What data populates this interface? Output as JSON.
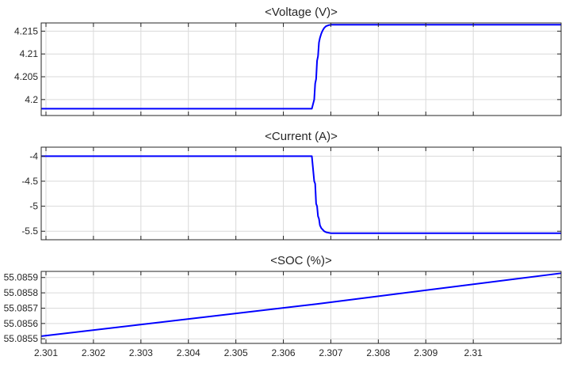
{
  "chart_data": [
    {
      "type": "line",
      "title": "<Voltage (V)>",
      "xlim": [
        2.3009,
        2.31185
      ],
      "ylim": [
        4.1965,
        4.2168
      ],
      "yticks": [
        4.2,
        4.205,
        4.21,
        4.215
      ],
      "ytick_labels": [
        "4.2",
        "4.205",
        "4.21",
        "4.215"
      ],
      "grid": true,
      "series": [
        {
          "color": "#0000ff",
          "x": [
            2.3009,
            2.3066,
            2.30665,
            2.30667,
            2.30669,
            2.30671,
            2.30673,
            2.30675,
            2.30677,
            2.3068,
            2.30683,
            2.30686,
            2.3069,
            2.30695,
            2.307,
            2.31185
          ],
          "y": [
            4.198,
            4.198,
            4.2,
            4.2035,
            4.2045,
            4.2085,
            4.2095,
            4.2125,
            4.2135,
            4.2145,
            4.2152,
            4.2157,
            4.2161,
            4.2163,
            4.2164,
            4.2164
          ]
        }
      ]
    },
    {
      "type": "line",
      "title": "<Current (A)>",
      "xlim": [
        2.3009,
        2.31185
      ],
      "ylim": [
        -5.67,
        -3.82
      ],
      "yticks": [
        -5.5,
        -5,
        -4.5,
        -4
      ],
      "ytick_labels": [
        "-5.5",
        "-5",
        "-4.5",
        "-4"
      ],
      "grid": true,
      "series": [
        {
          "color": "#0000ff",
          "x": [
            2.3009,
            2.3066,
            2.30665,
            2.30667,
            2.30669,
            2.30671,
            2.30673,
            2.30675,
            2.30677,
            2.3068,
            2.30683,
            2.30686,
            2.3069,
            2.30695,
            2.307,
            2.31185
          ],
          "y": [
            -4.0,
            -4.0,
            -4.5,
            -4.55,
            -4.95,
            -5.0,
            -5.2,
            -5.25,
            -5.38,
            -5.44,
            -5.47,
            -5.5,
            -5.52,
            -5.53,
            -5.54,
            -5.54
          ]
        }
      ]
    },
    {
      "type": "line",
      "title": "<SOC (%)>",
      "xlim": [
        2.3009,
        2.31185
      ],
      "ylim": [
        55.08547,
        55.08594
      ],
      "yticks": [
        55.0855,
        55.0856,
        55.0857,
        55.0858,
        55.0859
      ],
      "ytick_labels": [
        "55.0855",
        "55.0856",
        "55.0857",
        "55.0858",
        "55.0859"
      ],
      "xticks": [
        2.301,
        2.302,
        2.303,
        2.304,
        2.305,
        2.306,
        2.307,
        2.308,
        2.309,
        2.31
      ],
      "xtick_labels": [
        "2.301",
        "2.302",
        "2.303",
        "2.304",
        "2.305",
        "2.306",
        "2.307",
        "2.308",
        "2.309",
        "2.31"
      ],
      "grid": true,
      "series": [
        {
          "color": "#0000ff",
          "x": [
            2.3009,
            2.3067,
            2.31185
          ],
          "y": [
            55.085517,
            55.085727,
            55.085928
          ]
        }
      ]
    }
  ]
}
